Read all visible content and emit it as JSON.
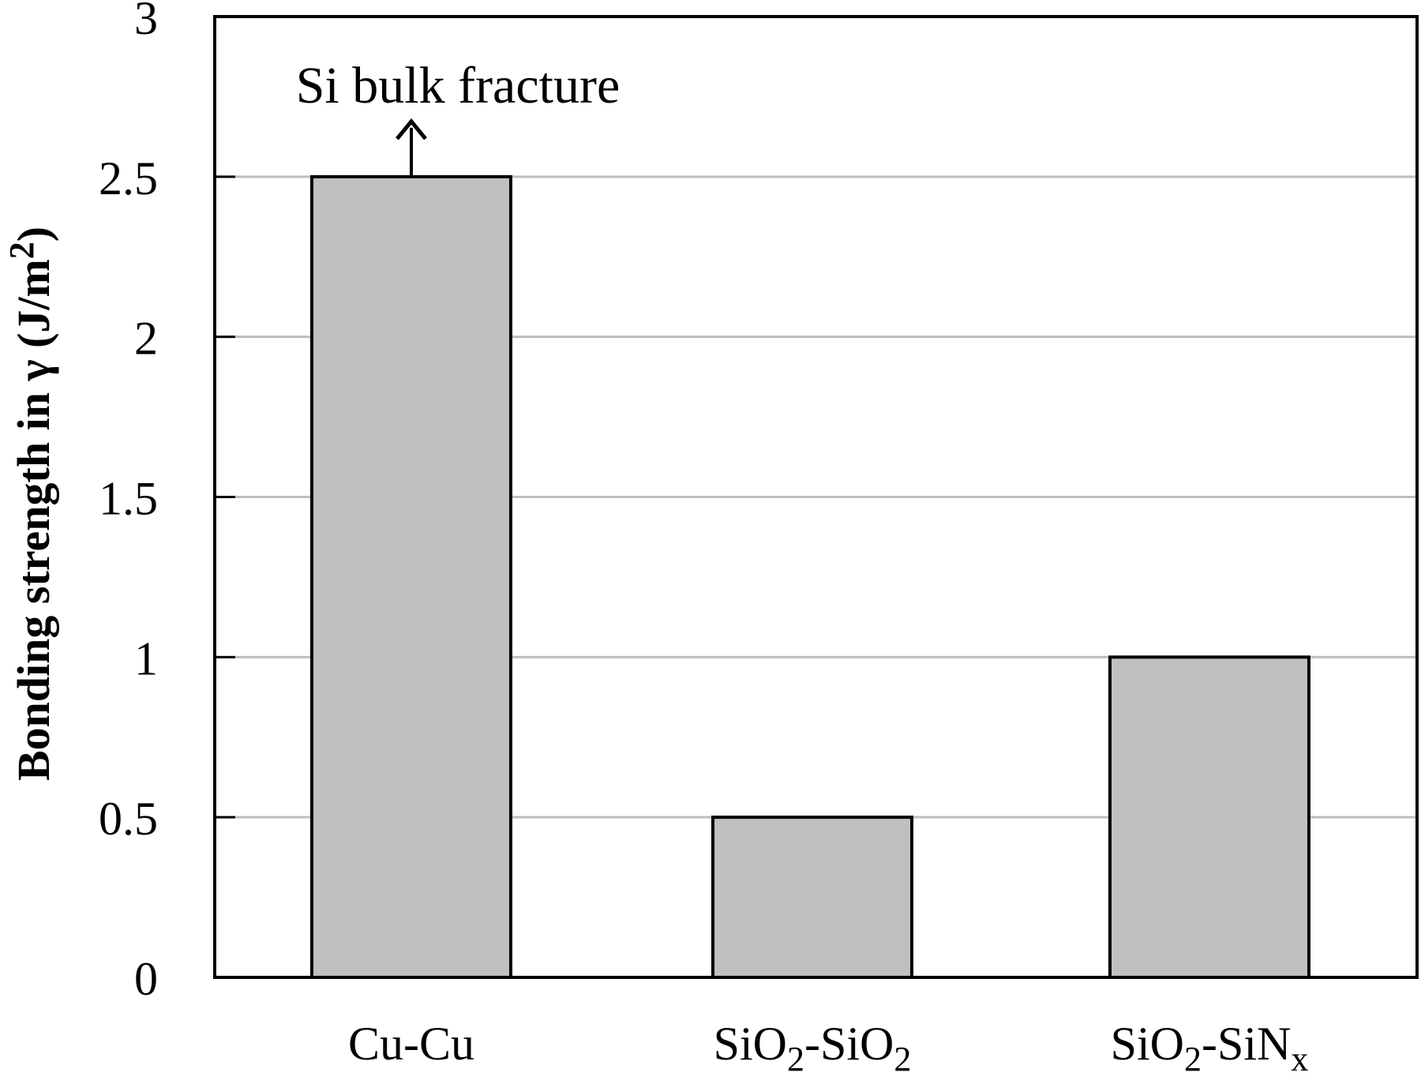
{
  "chart_data": {
    "type": "bar",
    "categories": [
      {
        "base": "Cu-Cu",
        "parts": [
          {
            "t": "Cu-Cu",
            "sub": false
          }
        ]
      },
      {
        "base": "SiO2-SiO2",
        "parts": [
          {
            "t": "SiO",
            "sub": false
          },
          {
            "t": "2",
            "sub": true
          },
          {
            "t": "-SiO",
            "sub": false
          },
          {
            "t": "2",
            "sub": true
          }
        ]
      },
      {
        "base": "SiO2-SiNx",
        "parts": [
          {
            "t": "SiO",
            "sub": false
          },
          {
            "t": "2",
            "sub": true
          },
          {
            "t": "-SiN",
            "sub": false
          },
          {
            "t": "x",
            "sub": true
          }
        ]
      }
    ],
    "values": [
      2.5,
      0.5,
      1.0
    ],
    "ylabel_parts": [
      {
        "t": "Bonding strength in γ (J/m",
        "sup": false
      },
      {
        "t": "2",
        "sup": true
      },
      {
        "t": ")",
        "sup": false
      }
    ],
    "ylim": [
      0,
      3
    ],
    "yticks": [
      "0",
      "0.5",
      "1",
      "1.5",
      "2",
      "2.5",
      "3"
    ],
    "grid": true,
    "bar_color": "#c0c0c0",
    "grid_color": "#bdbdbd",
    "annotation": {
      "text": "Si bulk fracture",
      "category_index": 0
    }
  }
}
